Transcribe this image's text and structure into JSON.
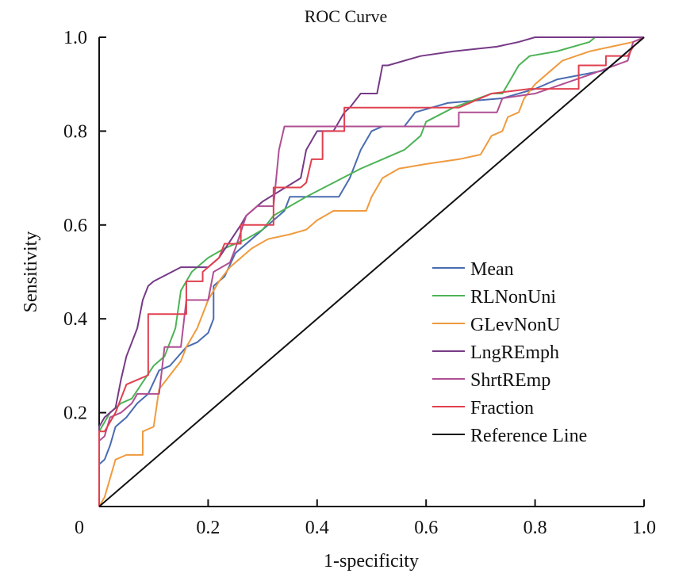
{
  "chart_data": {
    "type": "line",
    "title": "ROC Curve",
    "xlabel": "1-specificity",
    "ylabel": "Sensitivity",
    "xlim": [
      0,
      1
    ],
    "ylim": [
      0,
      1
    ],
    "x_ticks": [
      "0",
      "0.2",
      "0.4",
      "0.6",
      "0.8",
      "1.0"
    ],
    "y_ticks": [
      "0.2",
      "0.4",
      "0.6",
      "0.8",
      "1.0"
    ],
    "grid": false,
    "legend_position": "bottom-right",
    "series": [
      {
        "name": "Mean",
        "color": "#4a6cb0",
        "points": [
          [
            0,
            0
          ],
          [
            0,
            0.09
          ],
          [
            0.01,
            0.1
          ],
          [
            0.02,
            0.13
          ],
          [
            0.03,
            0.17
          ],
          [
            0.04,
            0.18
          ],
          [
            0.05,
            0.19
          ],
          [
            0.07,
            0.22
          ],
          [
            0.09,
            0.24
          ],
          [
            0.11,
            0.29
          ],
          [
            0.13,
            0.3
          ],
          [
            0.16,
            0.34
          ],
          [
            0.18,
            0.35
          ],
          [
            0.2,
            0.37
          ],
          [
            0.21,
            0.4
          ],
          [
            0.21,
            0.47
          ],
          [
            0.23,
            0.49
          ],
          [
            0.25,
            0.54
          ],
          [
            0.28,
            0.57
          ],
          [
            0.3,
            0.59
          ],
          [
            0.34,
            0.63
          ],
          [
            0.35,
            0.66
          ],
          [
            0.44,
            0.66
          ],
          [
            0.46,
            0.7
          ],
          [
            0.48,
            0.76
          ],
          [
            0.5,
            0.8
          ],
          [
            0.52,
            0.81
          ],
          [
            0.56,
            0.81
          ],
          [
            0.58,
            0.84
          ],
          [
            0.64,
            0.86
          ],
          [
            0.74,
            0.87
          ],
          [
            0.8,
            0.89
          ],
          [
            0.84,
            0.91
          ],
          [
            0.93,
            0.93
          ],
          [
            0.97,
            0.97
          ],
          [
            1,
            1
          ]
        ]
      },
      {
        "name": "RLNonUni",
        "color": "#4db356",
        "points": [
          [
            0,
            0
          ],
          [
            0,
            0.16
          ],
          [
            0.01,
            0.18
          ],
          [
            0.02,
            0.2
          ],
          [
            0.04,
            0.22
          ],
          [
            0.06,
            0.23
          ],
          [
            0.1,
            0.3
          ],
          [
            0.12,
            0.32
          ],
          [
            0.14,
            0.38
          ],
          [
            0.15,
            0.46
          ],
          [
            0.17,
            0.5
          ],
          [
            0.2,
            0.53
          ],
          [
            0.23,
            0.55
          ],
          [
            0.27,
            0.57
          ],
          [
            0.3,
            0.59
          ],
          [
            0.32,
            0.62
          ],
          [
            0.38,
            0.66
          ],
          [
            0.43,
            0.69
          ],
          [
            0.48,
            0.72
          ],
          [
            0.52,
            0.74
          ],
          [
            0.56,
            0.76
          ],
          [
            0.59,
            0.79
          ],
          [
            0.6,
            0.82
          ],
          [
            0.65,
            0.85
          ],
          [
            0.72,
            0.88
          ],
          [
            0.74,
            0.88
          ],
          [
            0.76,
            0.92
          ],
          [
            0.77,
            0.94
          ],
          [
            0.79,
            0.96
          ],
          [
            0.84,
            0.97
          ],
          [
            0.9,
            0.99
          ],
          [
            0.91,
            1
          ],
          [
            1,
            1
          ]
        ]
      },
      {
        "name": "GLevNonU",
        "color": "#f09a3e",
        "points": [
          [
            0,
            0
          ],
          [
            0.01,
            0.02
          ],
          [
            0.02,
            0.06
          ],
          [
            0.03,
            0.1
          ],
          [
            0.05,
            0.11
          ],
          [
            0.08,
            0.11
          ],
          [
            0.08,
            0.16
          ],
          [
            0.1,
            0.17
          ],
          [
            0.11,
            0.25
          ],
          [
            0.13,
            0.28
          ],
          [
            0.15,
            0.31
          ],
          [
            0.16,
            0.34
          ],
          [
            0.18,
            0.38
          ],
          [
            0.2,
            0.44
          ],
          [
            0.22,
            0.48
          ],
          [
            0.24,
            0.51
          ],
          [
            0.28,
            0.55
          ],
          [
            0.31,
            0.57
          ],
          [
            0.35,
            0.58
          ],
          [
            0.38,
            0.59
          ],
          [
            0.4,
            0.61
          ],
          [
            0.43,
            0.63
          ],
          [
            0.49,
            0.63
          ],
          [
            0.5,
            0.66
          ],
          [
            0.51,
            0.68
          ],
          [
            0.52,
            0.7
          ],
          [
            0.55,
            0.72
          ],
          [
            0.6,
            0.73
          ],
          [
            0.66,
            0.74
          ],
          [
            0.7,
            0.75
          ],
          [
            0.72,
            0.79
          ],
          [
            0.74,
            0.8
          ],
          [
            0.75,
            0.83
          ],
          [
            0.77,
            0.84
          ],
          [
            0.78,
            0.87
          ],
          [
            0.8,
            0.9
          ],
          [
            0.83,
            0.93
          ],
          [
            0.85,
            0.95
          ],
          [
            0.9,
            0.97
          ],
          [
            0.94,
            0.98
          ],
          [
            0.98,
            0.99
          ],
          [
            1,
            1
          ]
        ]
      },
      {
        "name": "LngREmph",
        "color": "#763a86",
        "points": [
          [
            0,
            0
          ],
          [
            0,
            0.17
          ],
          [
            0.01,
            0.19
          ],
          [
            0.03,
            0.21
          ],
          [
            0.04,
            0.27
          ],
          [
            0.05,
            0.32
          ],
          [
            0.06,
            0.35
          ],
          [
            0.07,
            0.38
          ],
          [
            0.08,
            0.44
          ],
          [
            0.09,
            0.47
          ],
          [
            0.1,
            0.48
          ],
          [
            0.15,
            0.51
          ],
          [
            0.2,
            0.51
          ],
          [
            0.22,
            0.53
          ],
          [
            0.26,
            0.6
          ],
          [
            0.27,
            0.62
          ],
          [
            0.3,
            0.65
          ],
          [
            0.37,
            0.7
          ],
          [
            0.38,
            0.76
          ],
          [
            0.39,
            0.78
          ],
          [
            0.4,
            0.8
          ],
          [
            0.43,
            0.8
          ],
          [
            0.45,
            0.84
          ],
          [
            0.46,
            0.85
          ],
          [
            0.48,
            0.88
          ],
          [
            0.51,
            0.88
          ],
          [
            0.52,
            0.94
          ],
          [
            0.53,
            0.94
          ],
          [
            0.59,
            0.96
          ],
          [
            0.65,
            0.97
          ],
          [
            0.73,
            0.98
          ],
          [
            0.77,
            0.99
          ],
          [
            0.8,
            1
          ],
          [
            1,
            1
          ]
        ]
      },
      {
        "name": "ShrtREmp",
        "color": "#b04f92",
        "points": [
          [
            0,
            0
          ],
          [
            0,
            0.14
          ],
          [
            0.01,
            0.15
          ],
          [
            0.02,
            0.19
          ],
          [
            0.04,
            0.2
          ],
          [
            0.05,
            0.21
          ],
          [
            0.06,
            0.22
          ],
          [
            0.07,
            0.24
          ],
          [
            0.11,
            0.24
          ],
          [
            0.12,
            0.34
          ],
          [
            0.15,
            0.34
          ],
          [
            0.16,
            0.44
          ],
          [
            0.2,
            0.44
          ],
          [
            0.21,
            0.5
          ],
          [
            0.24,
            0.52
          ],
          [
            0.25,
            0.55
          ],
          [
            0.27,
            0.62
          ],
          [
            0.29,
            0.64
          ],
          [
            0.32,
            0.64
          ],
          [
            0.33,
            0.76
          ],
          [
            0.34,
            0.81
          ],
          [
            0.66,
            0.81
          ],
          [
            0.66,
            0.84
          ],
          [
            0.73,
            0.84
          ],
          [
            0.74,
            0.87
          ],
          [
            0.8,
            0.88
          ],
          [
            0.85,
            0.9
          ],
          [
            0.9,
            0.92
          ],
          [
            0.97,
            0.95
          ],
          [
            0.98,
            0.99
          ],
          [
            1,
            1
          ]
        ]
      },
      {
        "name": "Fraction",
        "color": "#e0404f",
        "points": [
          [
            0,
            0
          ],
          [
            0,
            0.16
          ],
          [
            0.01,
            0.16
          ],
          [
            0.02,
            0.18
          ],
          [
            0.03,
            0.2
          ],
          [
            0.05,
            0.26
          ],
          [
            0.07,
            0.27
          ],
          [
            0.09,
            0.28
          ],
          [
            0.09,
            0.41
          ],
          [
            0.16,
            0.41
          ],
          [
            0.16,
            0.48
          ],
          [
            0.19,
            0.48
          ],
          [
            0.19,
            0.5
          ],
          [
            0.2,
            0.51
          ],
          [
            0.22,
            0.53
          ],
          [
            0.23,
            0.56
          ],
          [
            0.26,
            0.56
          ],
          [
            0.26,
            0.6
          ],
          [
            0.32,
            0.6
          ],
          [
            0.32,
            0.68
          ],
          [
            0.37,
            0.68
          ],
          [
            0.38,
            0.69
          ],
          [
            0.39,
            0.74
          ],
          [
            0.41,
            0.74
          ],
          [
            0.41,
            0.8
          ],
          [
            0.45,
            0.8
          ],
          [
            0.45,
            0.85
          ],
          [
            0.66,
            0.85
          ],
          [
            0.72,
            0.88
          ],
          [
            0.79,
            0.89
          ],
          [
            0.88,
            0.89
          ],
          [
            0.88,
            0.94
          ],
          [
            0.93,
            0.94
          ],
          [
            0.93,
            0.96
          ],
          [
            0.97,
            0.96
          ],
          [
            0.98,
            0.98
          ],
          [
            1,
            1
          ]
        ]
      },
      {
        "name": "Reference Line",
        "color": "#111111",
        "points": [
          [
            0,
            0
          ],
          [
            1,
            1
          ]
        ]
      }
    ]
  }
}
